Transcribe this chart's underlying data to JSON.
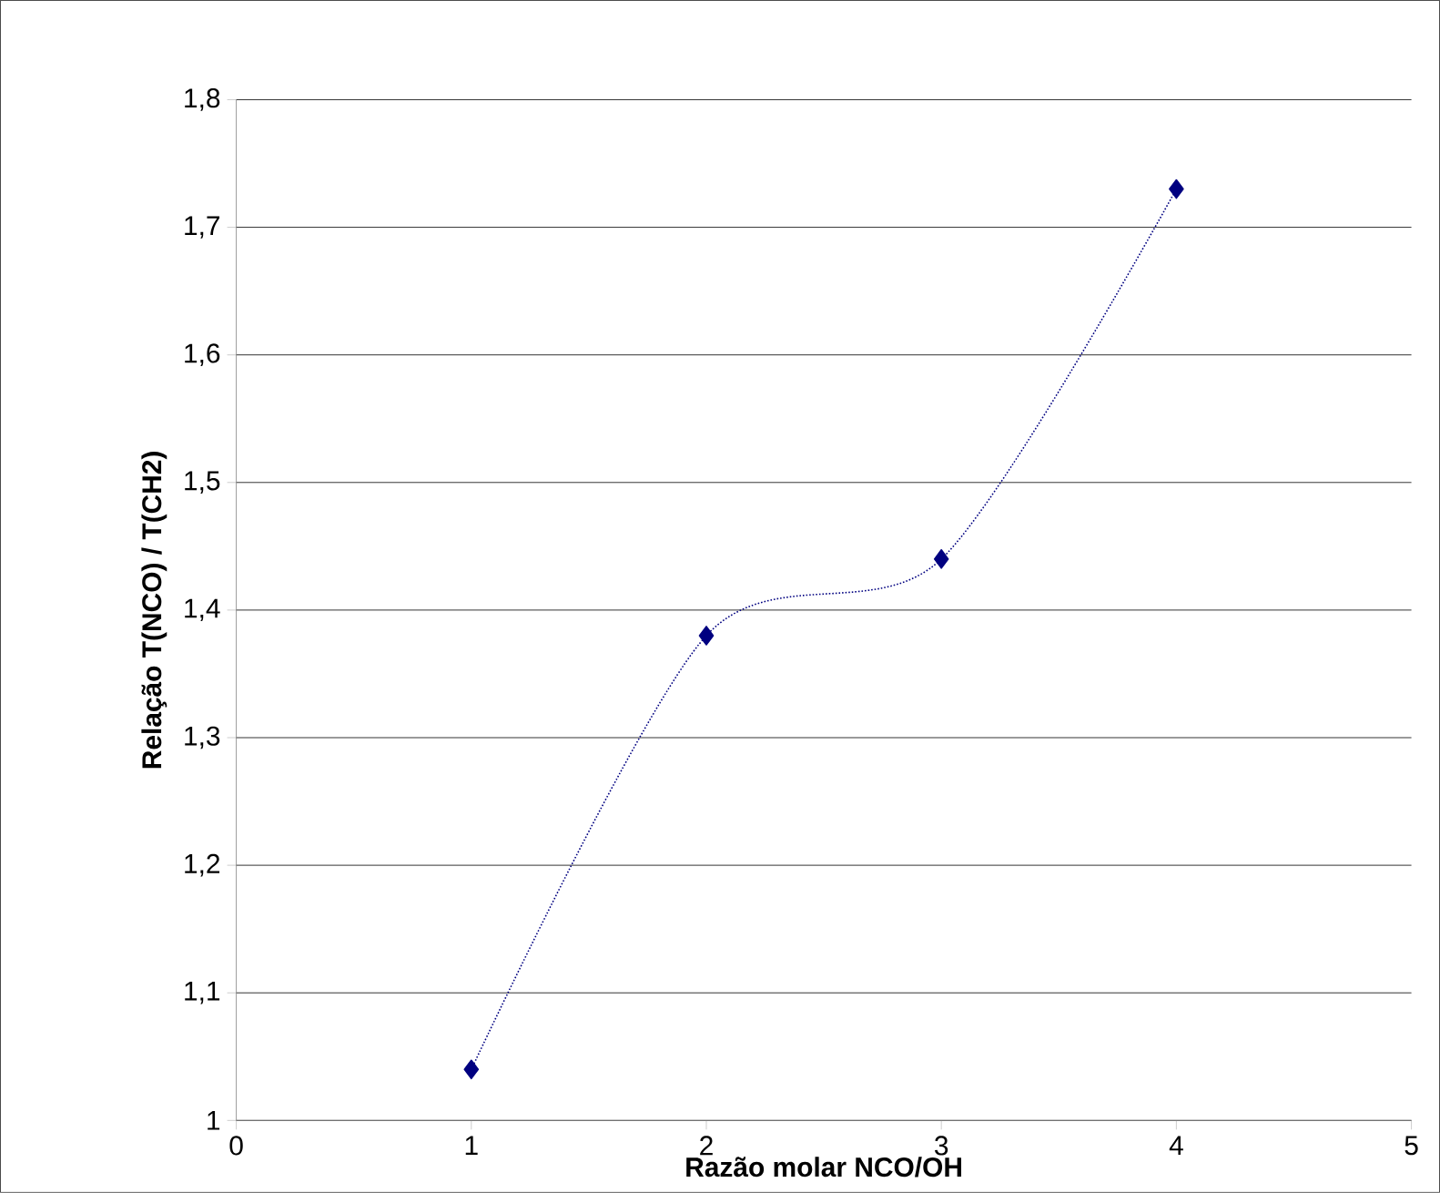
{
  "chart_data": {
    "type": "line",
    "xlabel": "Razão molar NCO/OH",
    "ylabel": "Relação T(NCO) / T(CH2)",
    "x": [
      1,
      2,
      3,
      4
    ],
    "values": [
      1.04,
      1.38,
      1.44,
      1.73
    ],
    "color": "#000080",
    "marker": "diamond",
    "line_style": "dotted",
    "xlim": [
      0,
      5
    ],
    "xticks": [
      0,
      1,
      2,
      3,
      4,
      5
    ],
    "ylim": [
      1,
      1.8
    ],
    "yticks": [
      1,
      {
        "value": 1.1,
        "label": "1,1"
      },
      {
        "value": 1.2,
        "label": "1,2"
      },
      {
        "value": 1.3,
        "label": "1,3"
      },
      {
        "value": 1.4,
        "label": "1,4"
      },
      {
        "value": 1.5,
        "label": "1,5"
      },
      {
        "value": 1.6,
        "label": "1,6"
      },
      {
        "value": 1.7,
        "label": "1,7"
      },
      {
        "value": 1.8,
        "label": "1,8"
      }
    ],
    "grid": "y"
  }
}
